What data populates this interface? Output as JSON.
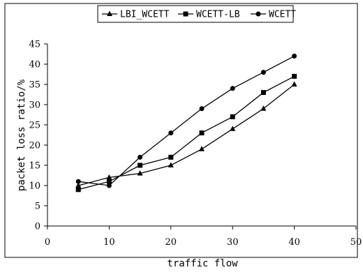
{
  "chart_data": {
    "type": "line",
    "xlabel": "traffic flow",
    "ylabel": "packet loss ratio/%",
    "xlim": [
      0,
      50
    ],
    "ylim": [
      0,
      45
    ],
    "xticks": [
      0,
      10,
      20,
      30,
      40,
      50
    ],
    "yticks": [
      0,
      5,
      10,
      15,
      20,
      25,
      30,
      35,
      40,
      45
    ],
    "grid": false,
    "legend_position": "top",
    "x": [
      5,
      10,
      15,
      20,
      25,
      30,
      35,
      40
    ],
    "series": [
      {
        "name": "LBI_WCETT",
        "marker": "triangle",
        "values": [
          10,
          12,
          13,
          15,
          19,
          24,
          29,
          35
        ]
      },
      {
        "name": "WCETT-LB",
        "marker": "square",
        "values": [
          9,
          11,
          15,
          17,
          23,
          27,
          33,
          37
        ]
      },
      {
        "name": "WCETT",
        "marker": "circle",
        "values": [
          11,
          10,
          17,
          23,
          29,
          34,
          38,
          42
        ]
      }
    ]
  }
}
